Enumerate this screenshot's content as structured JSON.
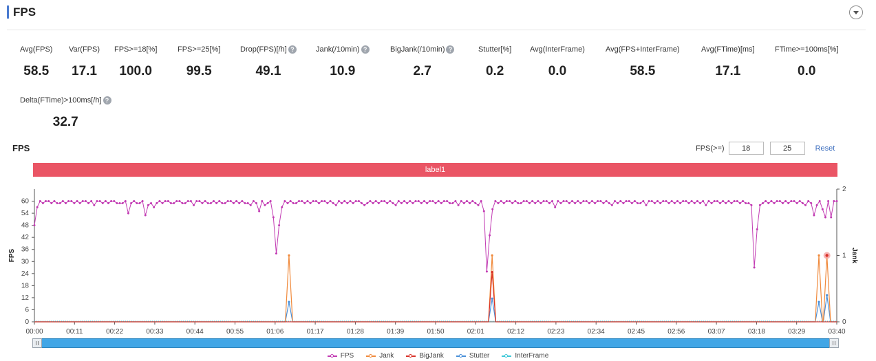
{
  "header": {
    "title": "FPS"
  },
  "metrics": [
    {
      "label": "Avg(FPS)",
      "value": "58.5",
      "help": false
    },
    {
      "label": "Var(FPS)",
      "value": "17.1",
      "help": false
    },
    {
      "label": "FPS>=18[%]",
      "value": "100.0",
      "help": false
    },
    {
      "label": "FPS>=25[%]",
      "value": "99.5",
      "help": false
    },
    {
      "label": "Drop(FPS)[/h]",
      "value": "49.1",
      "help": true
    },
    {
      "label": "Jank(/10min)",
      "value": "10.9",
      "help": true
    },
    {
      "label": "BigJank(/10min)",
      "value": "2.7",
      "help": true
    },
    {
      "label": "Stutter[%]",
      "value": "0.2",
      "help": false
    },
    {
      "label": "Avg(InterFrame)",
      "value": "0.0",
      "help": false
    },
    {
      "label": "Avg(FPS+InterFrame)",
      "value": "58.5",
      "help": false
    },
    {
      "label": "Avg(FTime)[ms]",
      "value": "17.1",
      "help": false
    },
    {
      "label": "FTime>=100ms[%]",
      "value": "0.0",
      "help": false
    },
    {
      "label": "Delta(FTime)>100ms[/h]",
      "value": "32.7",
      "help": true
    }
  ],
  "help_glyph": "?",
  "chart_title": "FPS",
  "fps_threshold": {
    "label": "FPS(>=)",
    "low": "18",
    "high": "25",
    "reset_label": "Reset"
  },
  "label_bar": {
    "text": "label1"
  },
  "colors": {
    "fps": "#c23bb3",
    "jank": "#f08a3c",
    "bigjank": "#d9322a",
    "stutter": "#4a90d9",
    "interframe": "#3cc8d8",
    "label_bar": "#ea5565"
  },
  "chart_data": {
    "type": "line",
    "x_labels": [
      "00:00",
      "00:11",
      "00:22",
      "00:33",
      "00:44",
      "00:55",
      "01:06",
      "01:17",
      "01:28",
      "01:39",
      "01:50",
      "02:01",
      "02:12",
      "02:23",
      "02:34",
      "02:45",
      "02:56",
      "03:07",
      "03:18",
      "03:29",
      "03:40"
    ],
    "x_range_sec": [
      0,
      220
    ],
    "y_left": {
      "label": "FPS",
      "ticks": [
        0,
        6,
        12,
        18,
        24,
        30,
        36,
        42,
        48,
        54,
        60
      ],
      "range": [
        0,
        66
      ]
    },
    "y_right": {
      "label": "Jank",
      "ticks": [
        0,
        1,
        2
      ],
      "range": [
        0,
        2
      ]
    },
    "series": [
      {
        "name": "FPS",
        "axis": "left",
        "values": [
          48,
          57,
          60,
          59,
          60,
          60,
          59,
          60,
          59,
          59,
          60,
          59,
          60,
          60,
          59,
          60,
          59,
          60,
          60,
          59,
          60,
          58,
          60,
          60,
          59,
          60,
          59,
          60,
          60,
          59,
          59,
          59,
          60,
          54,
          59,
          60,
          59,
          59,
          60,
          53,
          58,
          59,
          57,
          59,
          60,
          59,
          60,
          60,
          59,
          59,
          60,
          60,
          59,
          59,
          60,
          60,
          58,
          60,
          60,
          59,
          60,
          59,
          59,
          60,
          59,
          60,
          59,
          59,
          60,
          60,
          59,
          60,
          59,
          60,
          59,
          59,
          58,
          60,
          59,
          55,
          60,
          58,
          59,
          60,
          52,
          34,
          48,
          57,
          60,
          59,
          60,
          59,
          59,
          60,
          60,
          59,
          60,
          59,
          60,
          60,
          59,
          60,
          60,
          59,
          60,
          59,
          58,
          60,
          59,
          60,
          59,
          60,
          59,
          60,
          60,
          59,
          58,
          59,
          60,
          59,
          60,
          59,
          60,
          60,
          59,
          60,
          59,
          58,
          60,
          59,
          60,
          59,
          60,
          59,
          60,
          60,
          59,
          60,
          59,
          60,
          60,
          59,
          60,
          59,
          60,
          60,
          59,
          59,
          60,
          58,
          60,
          59,
          60,
          59,
          60,
          59,
          58,
          60,
          55,
          25,
          43,
          56,
          60,
          59,
          60,
          59,
          60,
          60,
          59,
          60,
          59,
          59,
          60,
          60,
          59,
          60,
          59,
          60,
          59,
          60,
          60,
          59,
          60,
          57,
          60,
          59,
          60,
          60,
          59,
          60,
          59,
          60,
          59,
          60,
          60,
          59,
          60,
          59,
          60,
          60,
          59,
          60,
          59,
          58,
          60,
          59,
          60,
          59,
          60,
          60,
          59,
          60,
          59,
          59,
          60,
          58,
          60,
          60,
          59,
          60,
          59,
          60,
          60,
          59,
          60,
          59,
          60,
          59,
          60,
          60,
          59,
          60,
          59,
          60,
          59,
          60,
          58,
          60,
          59,
          60,
          60,
          59,
          60,
          59,
          60,
          59,
          60,
          60,
          59,
          60,
          59,
          59,
          58,
          27,
          46,
          58,
          59,
          60,
          59,
          60,
          59,
          60,
          60,
          59,
          60,
          59,
          60,
          60,
          59,
          60,
          59,
          58,
          60,
          59,
          53,
          58,
          60,
          56,
          52,
          60,
          52,
          60,
          60
        ]
      },
      {
        "name": "Jank",
        "axis": "right",
        "spikes": [
          {
            "x": 69.8,
            "value": 1.0
          },
          {
            "x": 125.5,
            "value": 1.0
          },
          {
            "x": 215.1,
            "value": 1.0
          },
          {
            "x": 217.3,
            "value": 1.0
          }
        ]
      },
      {
        "name": "BigJank",
        "axis": "right",
        "spikes": [
          {
            "x": 125.5,
            "value": 0.75
          }
        ]
      },
      {
        "name": "Stutter",
        "axis": "right",
        "spikes": [
          {
            "x": 69.8,
            "value": 0.3
          },
          {
            "x": 125.5,
            "value": 0.35
          },
          {
            "x": 215.1,
            "value": 0.3
          },
          {
            "x": 217.3,
            "value": 0.4
          }
        ]
      },
      {
        "name": "InterFrame",
        "axis": "right",
        "values": []
      }
    ],
    "legend": [
      "FPS",
      "Jank",
      "BigJank",
      "Stutter",
      "InterFrame"
    ],
    "legend_position": "bottom",
    "grid": false
  }
}
